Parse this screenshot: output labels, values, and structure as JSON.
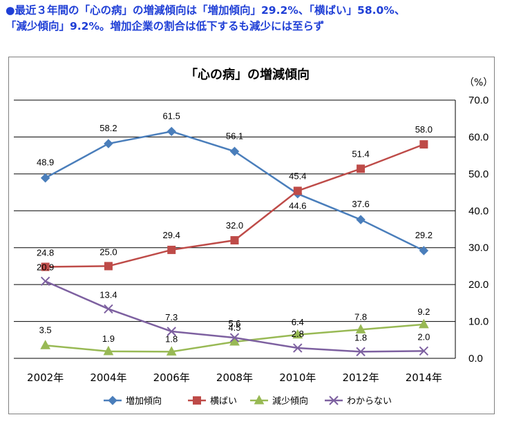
{
  "headline": {
    "line1": "●最近３年間の「心の病」の増減傾向は「増加傾向」29.2%、「横ばい」58.0%、",
    "line2": "「減少傾向」9.2%。増加企業の割合は低下するも減少には至らず"
  },
  "colors": {
    "headline": "#1f3fd6",
    "series": [
      "#4a7ebb",
      "#be4b48",
      "#98b954",
      "#7d60a0"
    ],
    "grid": "#000000",
    "frame": "#7f7f7f"
  },
  "chart_data": {
    "type": "line",
    "title": "「心の病」の増減傾向",
    "unit_label": "（%）",
    "categories": [
      "2002年",
      "2004年",
      "2006年",
      "2008年",
      "2010年",
      "2012年",
      "2014年"
    ],
    "ylim": [
      0,
      70
    ],
    "yticks": [
      "0.0",
      "10.0",
      "20.0",
      "30.0",
      "40.0",
      "50.0",
      "60.0",
      "70.0"
    ],
    "y_axis_side": "right",
    "grid": true,
    "legend_position": "bottom",
    "series": [
      {
        "name": "増加傾向",
        "marker": "diamond",
        "values": [
          48.9,
          58.2,
          61.5,
          56.1,
          44.6,
          37.6,
          29.2
        ],
        "labels": [
          "48.9",
          "58.2",
          "61.5",
          "56.1",
          "44.6",
          "37.6",
          "29.2"
        ]
      },
      {
        "name": "横ばい",
        "marker": "square",
        "values": [
          24.8,
          25.0,
          29.4,
          32.0,
          45.4,
          51.4,
          58.0
        ],
        "labels": [
          "24.8",
          "25.0",
          "29.4",
          "32.0",
          "45.4",
          "51.4",
          "58.0"
        ]
      },
      {
        "name": "減少傾向",
        "marker": "triangle",
        "values": [
          3.5,
          1.9,
          1.8,
          4.5,
          6.4,
          7.8,
          9.2
        ],
        "labels": [
          "3.5",
          "1.9",
          "1.8",
          "4.5",
          "6.4",
          "7.8",
          "9.2"
        ]
      },
      {
        "name": "わからない",
        "marker": "x",
        "values": [
          20.9,
          13.4,
          7.3,
          5.6,
          2.8,
          1.8,
          2.0
        ],
        "labels": [
          "20.9",
          "13.4",
          "7.3",
          "5.6",
          "2.8",
          "1.8",
          "2.0"
        ]
      }
    ]
  }
}
